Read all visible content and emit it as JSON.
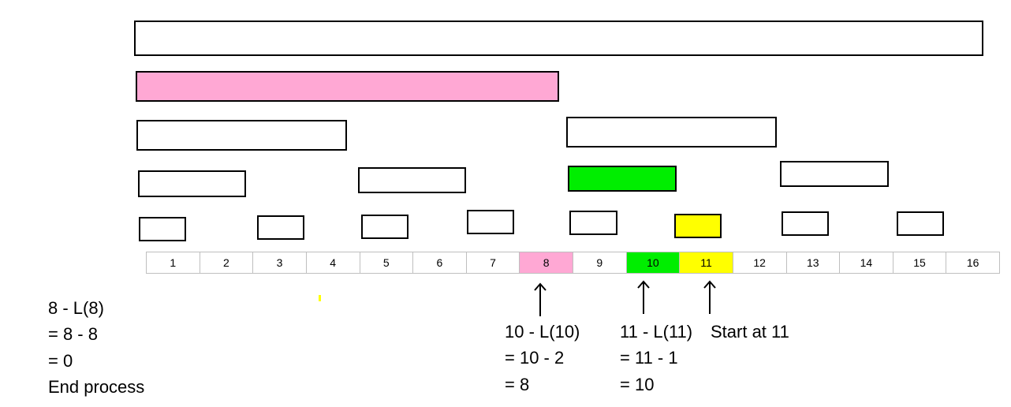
{
  "colors": {
    "pink": "#ffa8d4",
    "green": "#00ee00",
    "yellow": "#ffff00",
    "outline": "#000000",
    "cell_border": "#bfbfbf"
  },
  "index_row": {
    "cells": [
      "1",
      "2",
      "3",
      "4",
      "5",
      "6",
      "7",
      "8",
      "9",
      "10",
      "11",
      "12",
      "13",
      "14",
      "15",
      "16"
    ],
    "highlights": [
      {
        "index": "8",
        "color": "pink"
      },
      {
        "index": "10",
        "color": "green"
      },
      {
        "index": "11",
        "color": "yellow"
      }
    ]
  },
  "tree_levels": [
    {
      "level": 1,
      "highlight": "none"
    },
    {
      "level": 2,
      "highlight": "pink"
    },
    {
      "level": 3,
      "highlight": "none"
    },
    {
      "level": 4,
      "highlight": "green"
    },
    {
      "level": 5,
      "highlight": "yellow"
    }
  ],
  "annotations": {
    "end_block": {
      "lines": [
        "8 - L(8)",
        "= 8 - 8",
        "= 0",
        "End process"
      ]
    },
    "block_10": {
      "lines": [
        "10 - L(10)",
        "= 10 - 2",
        "= 8"
      ]
    },
    "block_11": {
      "lines": [
        "11 - L(11)",
        "= 11 - 1",
        "= 10"
      ]
    },
    "start_label": "Start at 11"
  },
  "arrows": [
    {
      "points_to": "8",
      "icon": "arrow-up-icon"
    },
    {
      "points_to": "10",
      "icon": "arrow-up-icon"
    },
    {
      "points_to": "11",
      "icon": "arrow-up-icon"
    }
  ]
}
